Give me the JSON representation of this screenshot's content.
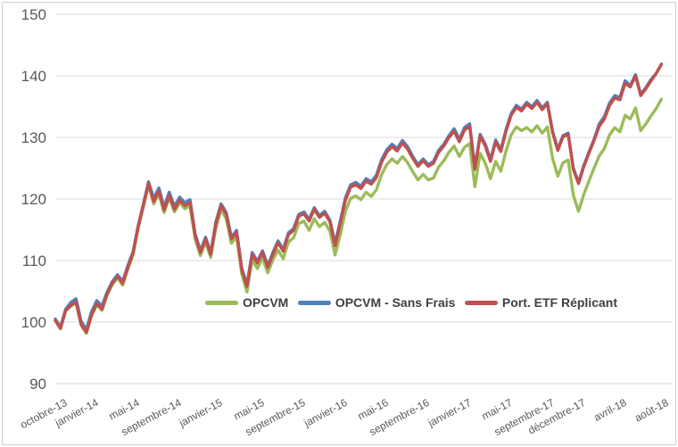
{
  "chart_data": {
    "type": "line",
    "title": "",
    "xlabel": "",
    "ylabel": "",
    "grid": "horizontal",
    "legend_position": "inside-bottom-center",
    "y_axis": {
      "min": 90,
      "max": 150,
      "ticks": [
        150,
        140,
        130,
        120,
        110,
        100,
        90
      ]
    },
    "x_axis": {
      "tick_labels": [
        "octobre-13",
        "janvier-14",
        "mai-14",
        "septembre-14",
        "janvier-15",
        "mai-15",
        "septembre-15",
        "janvier-16",
        "mai-16",
        "septembre-16",
        "janvier-17",
        "mai-17",
        "septembre-17",
        "décembre-17",
        "avril-18",
        "août-18"
      ],
      "tick_month_offsets": [
        0,
        3,
        7,
        11,
        15,
        19,
        23,
        27,
        31,
        35,
        39,
        43,
        47,
        50,
        54,
        58
      ]
    },
    "x_start_month": 0,
    "x_step_months": 0.5,
    "series": [
      {
        "name": "OPCVM",
        "color": "#9BBB59",
        "values": [
          100.2,
          98.9,
          101.8,
          102.6,
          103.2,
          99.5,
          98.2,
          101.0,
          102.8,
          101.9,
          104.4,
          106.1,
          107.2,
          106.0,
          108.6,
          110.9,
          115.2,
          118.7,
          122.3,
          119.2,
          120.9,
          117.8,
          120.2,
          117.9,
          119.4,
          118.4,
          118.9,
          113.5,
          110.8,
          113.0,
          110.5,
          115.3,
          118.2,
          116.8,
          112.8,
          113.9,
          107.8,
          104.9,
          110.1,
          108.7,
          110.4,
          108.0,
          110.1,
          111.7,
          110.3,
          113.0,
          113.7,
          116.0,
          116.4,
          114.9,
          116.8,
          115.5,
          116.2,
          114.8,
          110.9,
          114.2,
          118.0,
          120.1,
          120.5,
          119.9,
          121.1,
          120.4,
          121.5,
          124.0,
          125.6,
          126.5,
          125.8,
          126.9,
          125.9,
          124.4,
          123.1,
          124.0,
          123.1,
          123.4,
          125.2,
          126.2,
          127.6,
          128.6,
          126.9,
          128.4,
          129.0,
          122.0,
          127.4,
          125.8,
          123.3,
          126.1,
          124.5,
          127.8,
          130.4,
          131.7,
          131.1,
          131.6,
          130.9,
          131.9,
          130.7,
          131.7,
          126.6,
          123.7,
          125.9,
          126.3,
          120.6,
          118.0,
          120.7,
          122.9,
          125.0,
          127.0,
          128.2,
          130.4,
          131.6,
          130.9,
          133.6,
          133.0,
          134.8,
          131.1,
          132.2,
          133.5,
          134.7,
          136.2
        ]
      },
      {
        "name": "OPCVM - Sans Frais",
        "color": "#4F81BD",
        "values": [
          100.5,
          99.2,
          102.1,
          103.2,
          103.8,
          100.1,
          98.8,
          101.7,
          103.5,
          102.6,
          104.9,
          106.6,
          107.7,
          106.6,
          109.2,
          111.4,
          115.7,
          119.2,
          122.8,
          120.1,
          121.8,
          118.7,
          121.1,
          118.8,
          120.3,
          119.4,
          119.9,
          114.3,
          111.6,
          113.8,
          111.3,
          116.3,
          119.2,
          117.8,
          113.8,
          114.9,
          108.8,
          106.1,
          111.3,
          109.9,
          111.6,
          109.2,
          111.3,
          113.2,
          111.8,
          114.5,
          115.2,
          117.5,
          117.9,
          116.7,
          118.6,
          117.3,
          118.0,
          116.6,
          112.8,
          116.4,
          120.2,
          122.3,
          122.7,
          122.1,
          123.3,
          122.8,
          123.9,
          126.4,
          128.0,
          128.9,
          128.2,
          129.5,
          128.5,
          126.9,
          125.6,
          126.5,
          125.6,
          126.1,
          127.9,
          128.9,
          130.3,
          131.4,
          129.7,
          131.6,
          132.2,
          125.1,
          130.5,
          128.9,
          126.4,
          129.6,
          128.0,
          131.3,
          133.9,
          135.2,
          134.6,
          135.7,
          135.0,
          136.0,
          134.8,
          135.7,
          131.0,
          128.1,
          130.3,
          130.7,
          125.0,
          122.7,
          125.4,
          127.6,
          129.7,
          132.2,
          133.4,
          135.6,
          136.8,
          136.5,
          139.2,
          138.4,
          140.2,
          137.0,
          138.1,
          139.4,
          140.4,
          141.9
        ]
      },
      {
        "name": "Port. ETF Réplicant",
        "color": "#C0504D",
        "values": [
          100.3,
          99.0,
          101.9,
          102.7,
          103.3,
          99.6,
          98.3,
          101.2,
          103.0,
          102.1,
          104.6,
          106.3,
          107.4,
          106.3,
          108.9,
          111.2,
          115.5,
          119.0,
          122.6,
          119.6,
          121.3,
          118.2,
          120.6,
          118.3,
          119.8,
          118.9,
          119.4,
          114.0,
          111.3,
          113.5,
          111.0,
          116.0,
          118.9,
          117.5,
          113.5,
          114.6,
          108.5,
          105.8,
          111.0,
          109.6,
          111.3,
          108.9,
          111.0,
          112.9,
          111.5,
          114.2,
          114.9,
          117.2,
          117.6,
          116.4,
          118.3,
          117.0,
          117.7,
          116.3,
          112.4,
          116.0,
          119.8,
          121.9,
          122.3,
          121.7,
          122.9,
          122.4,
          123.5,
          126.0,
          127.6,
          128.5,
          127.8,
          129.1,
          128.1,
          126.6,
          125.3,
          126.2,
          125.3,
          125.8,
          127.6,
          128.6,
          130.0,
          131.0,
          129.3,
          131.2,
          131.8,
          124.8,
          130.2,
          128.6,
          126.1,
          129.3,
          127.7,
          131.0,
          133.6,
          134.9,
          134.3,
          135.4,
          134.7,
          135.7,
          134.5,
          135.5,
          130.8,
          127.9,
          130.1,
          130.5,
          124.8,
          122.5,
          125.2,
          127.4,
          129.5,
          131.8,
          133.0,
          135.2,
          136.4,
          136.1,
          138.8,
          138.2,
          140.0,
          136.8,
          137.9,
          139.2,
          140.4,
          141.9
        ]
      }
    ],
    "legend_labels": [
      "OPCVM",
      "OPCVM - Sans Frais",
      "Port. ETF Réplicant"
    ]
  },
  "style": {
    "gridline_color": "#D9D9D9",
    "axis_text_color": "#595959",
    "legend_text_color": "#3F3F3F",
    "frame_border_color": "#CFCFCF",
    "background": "#FFFFFF"
  }
}
